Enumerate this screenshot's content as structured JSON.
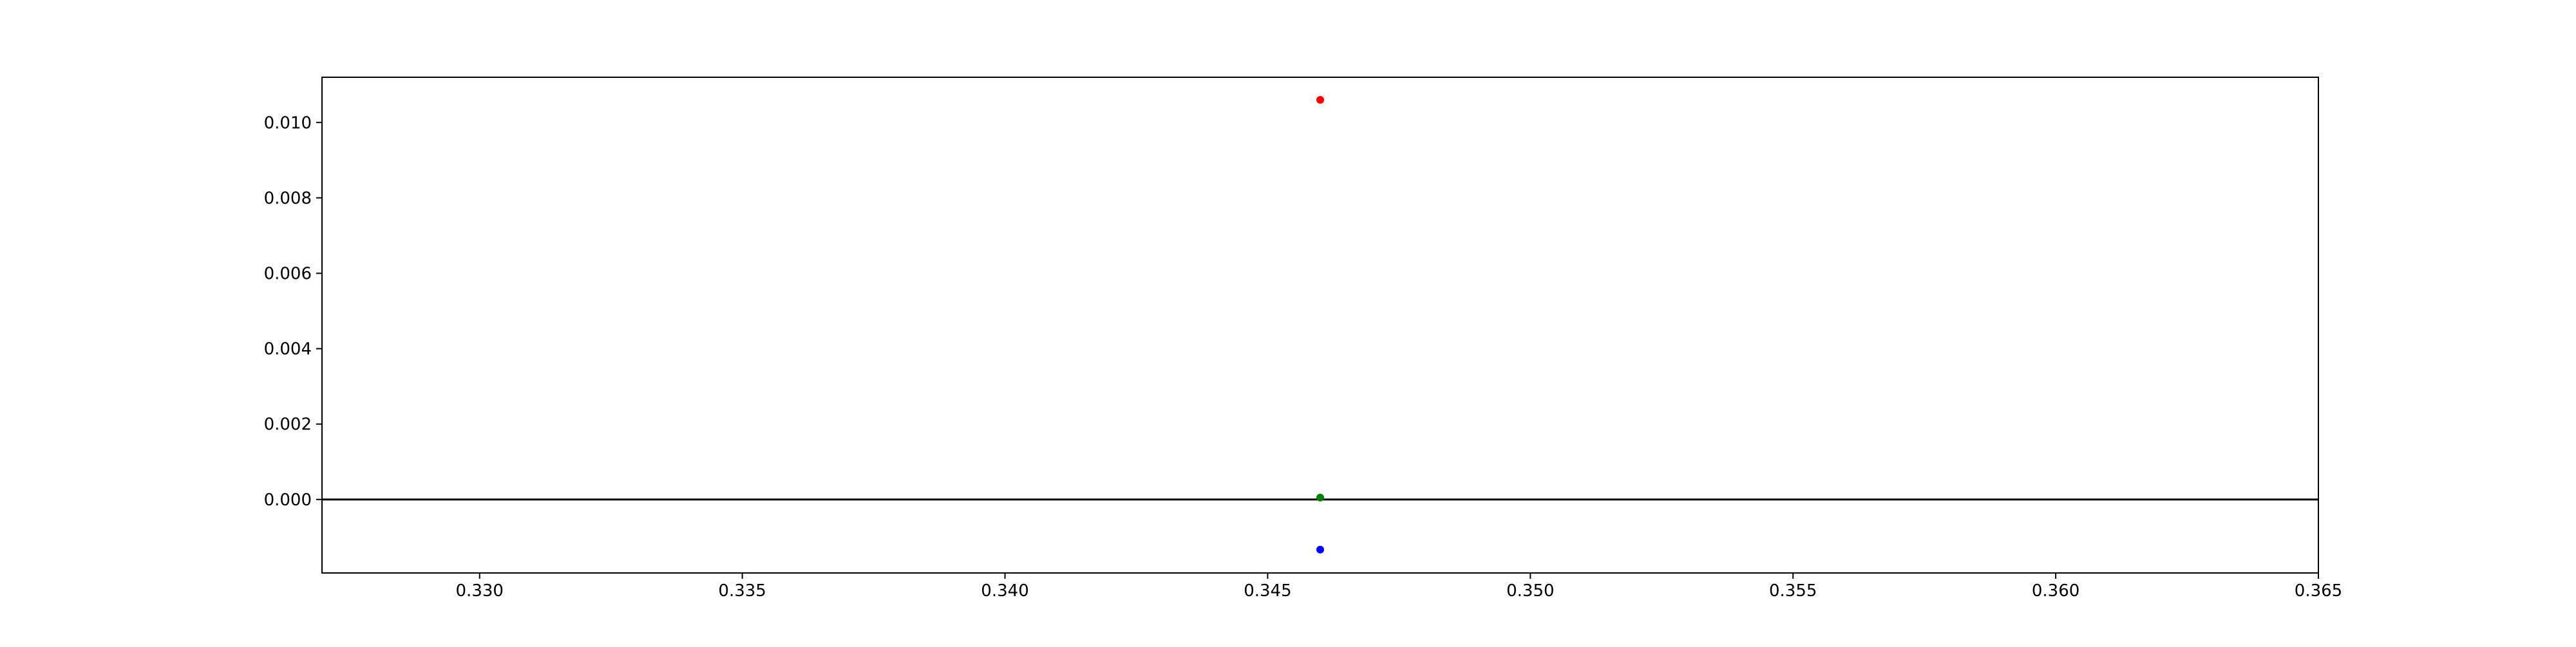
{
  "chart_data": {
    "type": "scatter",
    "title": "",
    "xlabel": "",
    "ylabel": "",
    "xlim": [
      0.327,
      0.365
    ],
    "ylim": [
      -0.00195,
      0.0112
    ],
    "xticks": [
      0.33,
      0.335,
      0.34,
      0.345,
      0.35,
      0.355,
      0.36,
      0.365
    ],
    "xtick_labels": [
      "0.330",
      "0.335",
      "0.340",
      "0.345",
      "0.350",
      "0.355",
      "0.360",
      "0.365"
    ],
    "yticks": [
      0.0,
      0.002,
      0.004,
      0.006,
      0.008,
      0.01
    ],
    "ytick_labels": [
      "0.000",
      "0.002",
      "0.004",
      "0.006",
      "0.008",
      "0.010"
    ],
    "grid": false,
    "reference_line": {
      "y": 0.0,
      "color": "#000000"
    },
    "series": [
      {
        "color": "#ff0000",
        "points": [
          {
            "x": 0.346,
            "y": 0.0106
          }
        ]
      },
      {
        "color": "#008000",
        "points": [
          {
            "x": 0.346,
            "y": 5e-05
          }
        ]
      },
      {
        "color": "#0000ff",
        "points": [
          {
            "x": 0.346,
            "y": -0.00133
          }
        ]
      }
    ]
  }
}
